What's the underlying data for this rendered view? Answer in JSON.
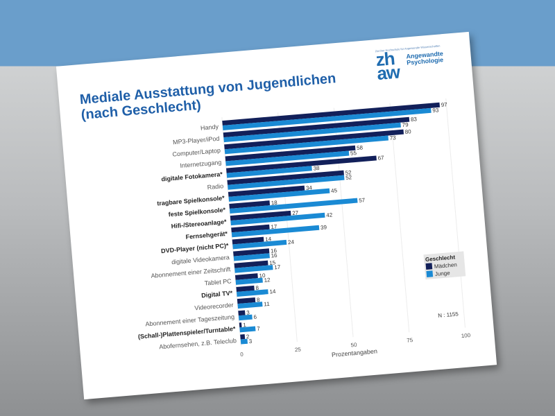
{
  "slide": {
    "title_line1": "Mediale Ausstattung von Jugendlichen",
    "title_line2": "(nach Geschlecht)"
  },
  "logo": {
    "tagline": "Zürcher Hochschule für Angewandte Wissenschaften",
    "mark_top": "zh",
    "mark_bottom": "aw",
    "name_line1": "Angewandte",
    "name_line2": "Psychologie"
  },
  "colors": {
    "maedchen": "#12205a",
    "junge": "#1a8ad4",
    "title": "#1f5fa8"
  },
  "chart_data": {
    "type": "bar",
    "orientation": "horizontal",
    "categories": [
      "Handy",
      "MP3-Player/iPod",
      "Computer/Laptop",
      "Internetzugang",
      "digitale Fotokamera*",
      "Radio",
      "tragbare Spielkonsole*",
      "feste Spielkonsole*",
      "Hifi-/Stereoanlage*",
      "Fernsehgerät*",
      "DVD-Player (nicht PC)*",
      "digitale Videokamera",
      "Abonnement einer Zeitschrift",
      "Tablet PC",
      "Digital TV*",
      "Videorecorder",
      "Abonnement einer Tageszeitung",
      "(Schall-)Plattenspieler/Turntable*",
      "Abofernsehen, z.B. Teleclub"
    ],
    "bold_categories": [
      "digitale Fotokamera*",
      "tragbare Spielkonsole*",
      "feste Spielkonsole*",
      "Hifi-/Stereoanlage*",
      "Fernsehgerät*",
      "DVD-Player (nicht PC)*",
      "Digital TV*",
      "(Schall-)Plattenspieler/Turntable*"
    ],
    "series": [
      {
        "name": "Mädchen",
        "values": [
          97,
          83,
          80,
          58,
          67,
          52,
          34,
          18,
          27,
          17,
          14,
          16,
          15,
          10,
          8,
          8,
          3,
          1,
          2
        ]
      },
      {
        "name": "Junge",
        "values": [
          93,
          79,
          73,
          55,
          38,
          52,
          45,
          57,
          42,
          39,
          24,
          16,
          17,
          12,
          14,
          11,
          6,
          7,
          3
        ]
      }
    ],
    "xlabel": "Prozentangaben",
    "xlim": [
      0,
      100
    ],
    "xticks": [
      "0",
      "25",
      "50",
      "75",
      "100"
    ],
    "legend_title": "Geschlecht",
    "legend_placement": "bottom-right",
    "annotation": "N : 1155",
    "grid": true
  }
}
